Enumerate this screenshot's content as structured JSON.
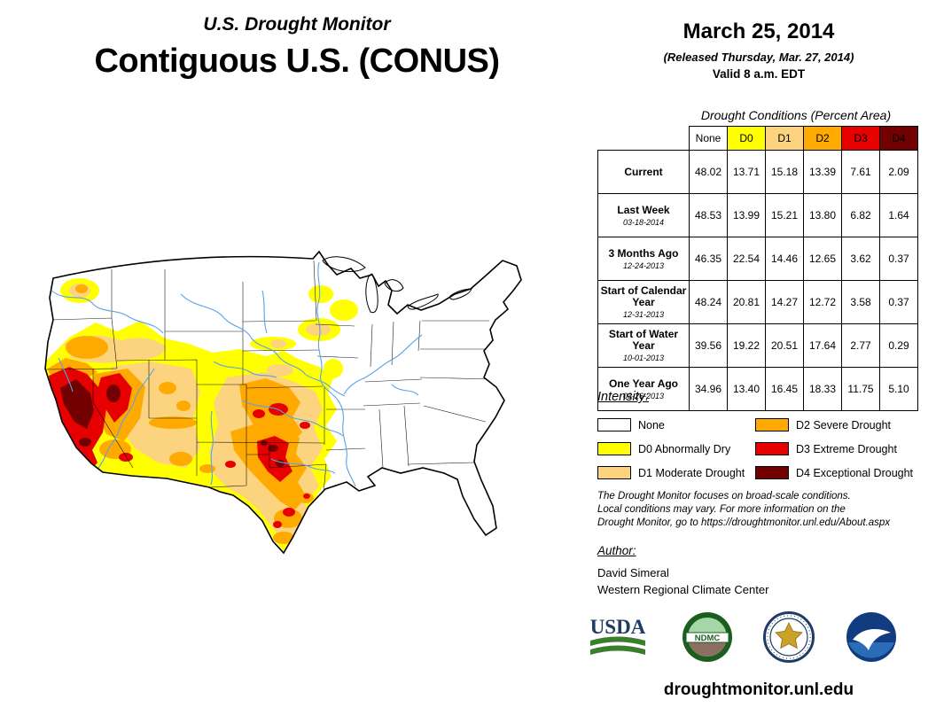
{
  "header": {
    "subtitle": "U.S. Drought Monitor",
    "title": "Contiguous U.S. (CONUS)"
  },
  "date_block": {
    "date": "March 25, 2014",
    "released": "(Released Thursday, Mar. 27, 2014)",
    "valid": "Valid 8 a.m. EDT"
  },
  "table": {
    "title": "Drought Conditions (Percent Area)",
    "columns": [
      {
        "label": "None",
        "color": "#FFFFFF"
      },
      {
        "label": "D0",
        "color": "#FFFF00"
      },
      {
        "label": "D1",
        "color": "#FCD37F"
      },
      {
        "label": "D2",
        "color": "#FFAA00"
      },
      {
        "label": "D3",
        "color": "#E60000"
      },
      {
        "label": "D4",
        "color": "#730000"
      }
    ],
    "rows": [
      {
        "label": "Current",
        "date": "",
        "values": [
          "48.02",
          "13.71",
          "15.18",
          "13.39",
          "7.61",
          "2.09"
        ]
      },
      {
        "label": "Last Week",
        "date": "03-18-2014",
        "values": [
          "48.53",
          "13.99",
          "15.21",
          "13.80",
          "6.82",
          "1.64"
        ]
      },
      {
        "label": "3 Months Ago",
        "date": "12-24-2013",
        "values": [
          "46.35",
          "22.54",
          "14.46",
          "12.65",
          "3.62",
          "0.37"
        ]
      },
      {
        "label": "Start of Calendar Year",
        "date": "12-31-2013",
        "values": [
          "48.24",
          "20.81",
          "14.27",
          "12.72",
          "3.58",
          "0.37"
        ]
      },
      {
        "label": "Start of Water Year",
        "date": "10-01-2013",
        "values": [
          "39.56",
          "19.22",
          "20.51",
          "17.64",
          "2.77",
          "0.29"
        ]
      },
      {
        "label": "One Year Ago",
        "date": "03-26-2013",
        "values": [
          "34.96",
          "13.40",
          "16.45",
          "18.33",
          "11.75",
          "5.10"
        ]
      }
    ]
  },
  "legend": {
    "title": "Intensity:",
    "items": [
      {
        "label": "None",
        "color": "#FFFFFF"
      },
      {
        "label": "D0 Abnormally Dry",
        "color": "#FFFF00"
      },
      {
        "label": "D1 Moderate Drought",
        "color": "#FCD37F"
      },
      {
        "label": "D2 Severe Drought",
        "color": "#FFAA00"
      },
      {
        "label": "D3 Extreme Drought",
        "color": "#E60000"
      },
      {
        "label": "D4 Exceptional Drought",
        "color": "#730000"
      }
    ]
  },
  "disclaimer": {
    "line1": "The Drought Monitor focuses on broad-scale conditions.",
    "line2": "Local conditions may vary. For more information on the",
    "line3": "Drought Monitor, go to https://droughtmonitor.unl.edu/About.aspx"
  },
  "author": {
    "title": "Author:",
    "name": "David Simeral",
    "org": "Western Regional Climate Center"
  },
  "logos": {
    "usda_label": "USDA",
    "ndmc_label": "NDMC",
    "names": [
      "usda-logo",
      "ndmc-logo",
      "department-of-commerce-seal",
      "noaa-logo"
    ]
  },
  "footer": {
    "url": "droughtmonitor.unl.edu"
  },
  "chart_data": {
    "type": "table",
    "title": "Drought Conditions (Percent Area)",
    "categories": [
      "None",
      "D0",
      "D1",
      "D2",
      "D3",
      "D4"
    ],
    "series": [
      {
        "name": "Current",
        "date": "",
        "values": [
          48.02,
          13.71,
          15.18,
          13.39,
          7.61,
          2.09
        ]
      },
      {
        "name": "Last Week",
        "date": "03-18-2014",
        "values": [
          48.53,
          13.99,
          15.21,
          13.8,
          6.82,
          1.64
        ]
      },
      {
        "name": "3 Months Ago",
        "date": "12-24-2013",
        "values": [
          46.35,
          22.54,
          14.46,
          12.65,
          3.62,
          0.37
        ]
      },
      {
        "name": "Start of Calendar Year",
        "date": "12-31-2013",
        "values": [
          48.24,
          20.81,
          14.27,
          12.72,
          3.58,
          0.37
        ]
      },
      {
        "name": "Start of Water Year",
        "date": "10-01-2013",
        "values": [
          39.56,
          19.22,
          20.51,
          17.64,
          2.77,
          0.29
        ]
      },
      {
        "name": "One Year Ago",
        "date": "03-26-2013",
        "values": [
          34.96,
          13.4,
          16.45,
          18.33,
          11.75,
          5.1
        ]
      }
    ],
    "legend_colors": {
      "None": "#FFFFFF",
      "D0": "#FFFF00",
      "D1": "#FCD37F",
      "D2": "#FFAA00",
      "D3": "#E60000",
      "D4": "#730000"
    }
  }
}
